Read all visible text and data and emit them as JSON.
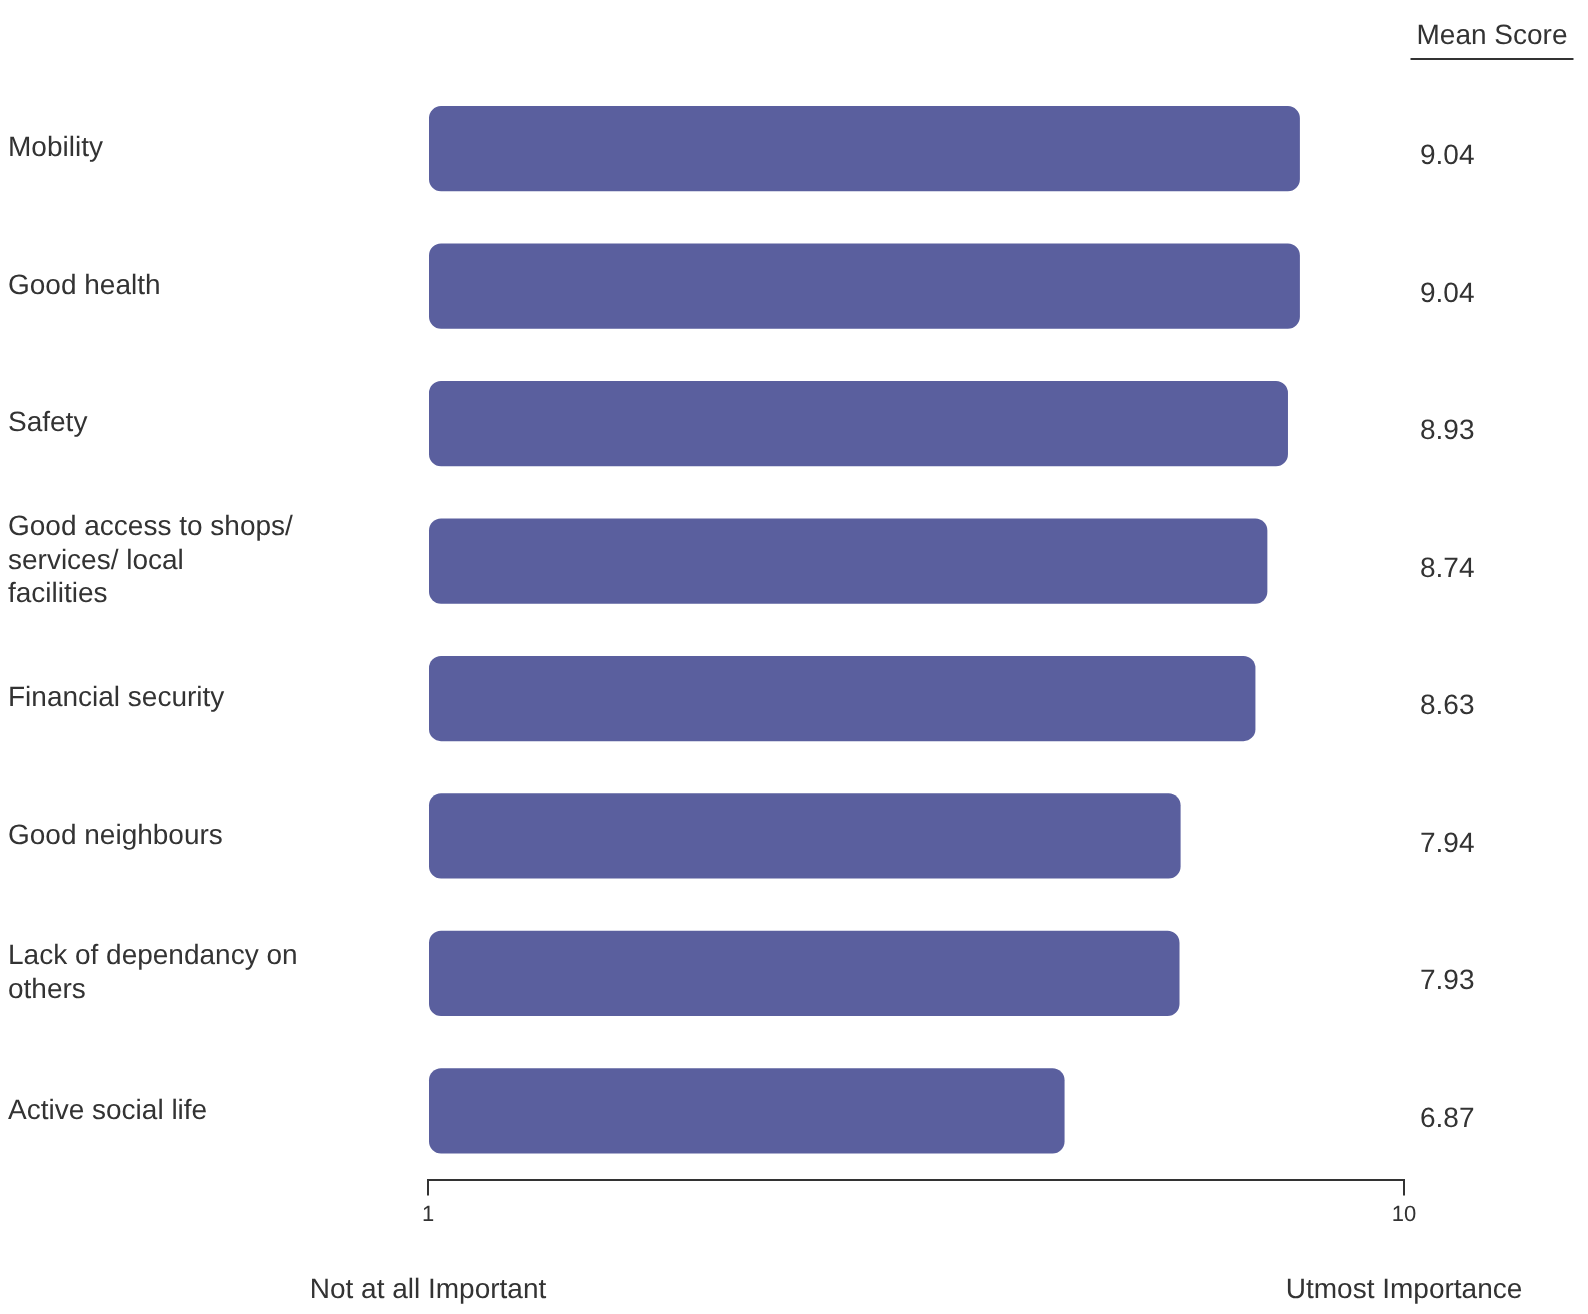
{
  "chart_data": {
    "type": "bar",
    "orientation": "horizontal",
    "categories": [
      "Mobility",
      "Good health",
      "Safety",
      "Good access to shops/ services/ local facilities",
      "Financial security",
      "Good neighbours",
      "Lack of dependancy on others",
      "Active social life"
    ],
    "values": [
      9.04,
      9.04,
      8.93,
      8.74,
      8.63,
      7.94,
      7.93,
      6.87
    ],
    "color": "#5a5f9e",
    "xlim": [
      1,
      10
    ],
    "xticks": [
      1,
      10
    ],
    "grid": false,
    "legend": false,
    "data_labels": true,
    "annotations": [
      "Mean Score",
      "Not at all Important",
      "Utmost Importance"
    ]
  }
}
